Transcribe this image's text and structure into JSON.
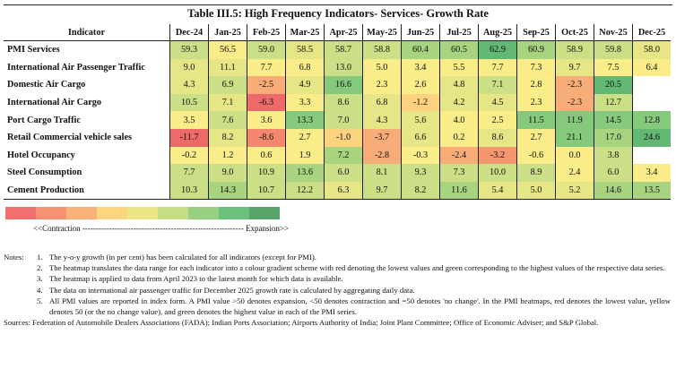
{
  "title": "Table III.5: High Frequency Indicators- Services- Growth Rate",
  "header": {
    "indicator": "Indicator",
    "months": [
      "Dec-24",
      "Jan-25",
      "Feb-25",
      "Mar-25",
      "Apr-25",
      "May-25",
      "Jun-25",
      "Jul-25",
      "Aug-25",
      "Sep-25",
      "Oct-25",
      "Nov-25",
      "Dec-25"
    ]
  },
  "rows": [
    {
      "name": "PMI Services",
      "values": [
        "59.3",
        "56.5",
        "59.0",
        "58.5",
        "58.7",
        "58.8",
        "60.4",
        "60.5",
        "62.9",
        "60.9",
        "58.9",
        "59.8",
        "58.0"
      ],
      "colors": [
        "#cbdf86",
        "#f9ec89",
        "#cbdf86",
        "#e6e687",
        "#cbdf86",
        "#cbdf86",
        "#a8d480",
        "#a8d480",
        "#63b873",
        "#a8d480",
        "#cbdf86",
        "#cbdf86",
        "#e6e687"
      ]
    },
    {
      "name": "International Air Passenger Traffic",
      "values": [
        "9.0",
        "11.1",
        "7.7",
        "6.8",
        "13.0",
        "5.0",
        "3.4",
        "5.5",
        "7.7",
        "7.3",
        "9.7",
        "7.5",
        "6.4"
      ],
      "colors": [
        "#e6e687",
        "#e6e687",
        "#f9ec89",
        "#f9ec89",
        "#cbdf86",
        "#f9ec89",
        "#f9ec89",
        "#f9ec89",
        "#f9ec89",
        "#f9ec89",
        "#e6e687",
        "#f9ec89",
        "#f9ec89"
      ]
    },
    {
      "name": "Domestic Air Cargo",
      "values": [
        "4.3",
        "6.9",
        "-2.5",
        "4.9",
        "16.6",
        "2.3",
        "2.6",
        "4.8",
        "7.1",
        "2.8",
        "-2.3",
        "20.5",
        ""
      ],
      "colors": [
        "#e6e687",
        "#cbdf86",
        "#f8ad78",
        "#e6e687",
        "#86c97c",
        "#f9ec89",
        "#f9ec89",
        "#e6e687",
        "#cbdf86",
        "#f9ec89",
        "#f8ad78",
        "#63b873",
        "#ffffff"
      ]
    },
    {
      "name": "International Air Cargo",
      "values": [
        "10.5",
        "7.1",
        "-6.3",
        "3.3",
        "8.6",
        "6.8",
        "-1.2",
        "4.2",
        "4.5",
        "2.3",
        "-2.3",
        "12.7",
        ""
      ],
      "colors": [
        "#cbdf86",
        "#e6e687",
        "#ee6a6a",
        "#f9ec89",
        "#cbdf86",
        "#e6e687",
        "#fcd27e",
        "#e6e687",
        "#e6e687",
        "#f9ec89",
        "#f8ad78",
        "#cbdf86",
        "#ffffff"
      ]
    },
    {
      "name": "Port Cargo Traffic",
      "values": [
        "3.5",
        "7.6",
        "3.6",
        "13.3",
        "7.0",
        "4.3",
        "5.6",
        "4.0",
        "2.5",
        "11.5",
        "11.9",
        "14.5",
        "12.8"
      ],
      "colors": [
        "#f9ec89",
        "#cbdf86",
        "#f9ec89",
        "#86c97c",
        "#cbdf86",
        "#e6e687",
        "#e6e687",
        "#f9ec89",
        "#f9ec89",
        "#86c97c",
        "#86c97c",
        "#86c97c",
        "#86c97c"
      ]
    },
    {
      "name": "Retail Commercial vehicle sales",
      "values": [
        "-11.7",
        "8.2",
        "-8.6",
        "2.7",
        "-1.0",
        "-3.7",
        "6.6",
        "0.2",
        "8.6",
        "2.7",
        "21.1",
        "17.0",
        "24.6"
      ],
      "colors": [
        "#ee6a6a",
        "#e6e687",
        "#f4876e",
        "#f9ec89",
        "#fcd27e",
        "#f8ad78",
        "#e6e687",
        "#f9ec89",
        "#e6e687",
        "#f9ec89",
        "#86c97c",
        "#a8d480",
        "#63b873"
      ]
    },
    {
      "name": "Hotel Occupancy",
      "values": [
        "-0.2",
        "1.2",
        "0.6",
        "1.9",
        "7.2",
        "-2.8",
        "-0.3",
        "-2.4",
        "-3.2",
        "-0.6",
        "0.0",
        "3.8",
        ""
      ],
      "colors": [
        "#f9ec89",
        "#f9ec89",
        "#f9ec89",
        "#f9ec89",
        "#a8d480",
        "#f8ad78",
        "#f9ec89",
        "#f8ad78",
        "#f4976e",
        "#f9ec89",
        "#f9ec89",
        "#cbdf86",
        "#ffffff"
      ]
    },
    {
      "name": "Steel Consumption",
      "values": [
        "7.7",
        "9.0",
        "10.9",
        "13.6",
        "6.0",
        "8.1",
        "9.3",
        "7.3",
        "10.0",
        "8.9",
        "2.4",
        "6.0",
        "3.4"
      ],
      "colors": [
        "#cbdf86",
        "#cbdf86",
        "#cbdf86",
        "#a8d480",
        "#cbdf86",
        "#cbdf86",
        "#cbdf86",
        "#cbdf86",
        "#cbdf86",
        "#cbdf86",
        "#f9ec89",
        "#cbdf86",
        "#f9ec89"
      ]
    },
    {
      "name": "Cement Production",
      "values": [
        "10.3",
        "14.3",
        "10.7",
        "12.2",
        "6.3",
        "9.7",
        "8.2",
        "11.6",
        "5.4",
        "5.0",
        "5.2",
        "14.6",
        "13.5"
      ],
      "colors": [
        "#cbdf86",
        "#a8d480",
        "#cbdf86",
        "#cbdf86",
        "#e6e687",
        "#cbdf86",
        "#cbdf86",
        "#a8d480",
        "#e6e687",
        "#e6e687",
        "#e6e687",
        "#a8d480",
        "#a8d480"
      ]
    }
  ],
  "legend": {
    "colors": [
      "#f07070",
      "#f59274",
      "#f9b27a",
      "#fbd580",
      "#eae684",
      "#c5dd84",
      "#98cf80",
      "#6bc07e",
      "#56a46a"
    ],
    "text": "<<Contraction ------------------------------------------------------------ Expansion>>"
  },
  "notes": {
    "label": "Notes:",
    "items": [
      {
        "num": "1.",
        "text": "The y-o-y growth (in per cent) has been calculated for all indicators (except for PMI)."
      },
      {
        "num": "2.",
        "text": "The heatmap translates the data range for each indicator into a colour gradient scheme with red denoting the lowest values and green corresponding to the highest values of the respective data series."
      },
      {
        "num": "3.",
        "text": "The heatmap is applied to data from April 2023 to the latest month for which data is available."
      },
      {
        "num": "4.",
        "text": "The data on international air passenger traffic for December 2025 growth rate is calculated by aggregating daily data."
      },
      {
        "num": "5.",
        "text": "All PMI values are reported in index form. A PMI value >50 denotes expansion, <50 denotes contraction and =50 denotes 'no change'. In the PMI heatmaps, red denotes the lowest value, yellow denotes 50 (or the no change value), and green denotes the highest value in each of the PMI series."
      }
    ],
    "sources": "Sources: Federation of Automobile Dealers Associations (FADA); Indian Ports Association; Airports Authority of India; Joint Plant Committee; Office of Economic Adviser; and S&P Global."
  }
}
